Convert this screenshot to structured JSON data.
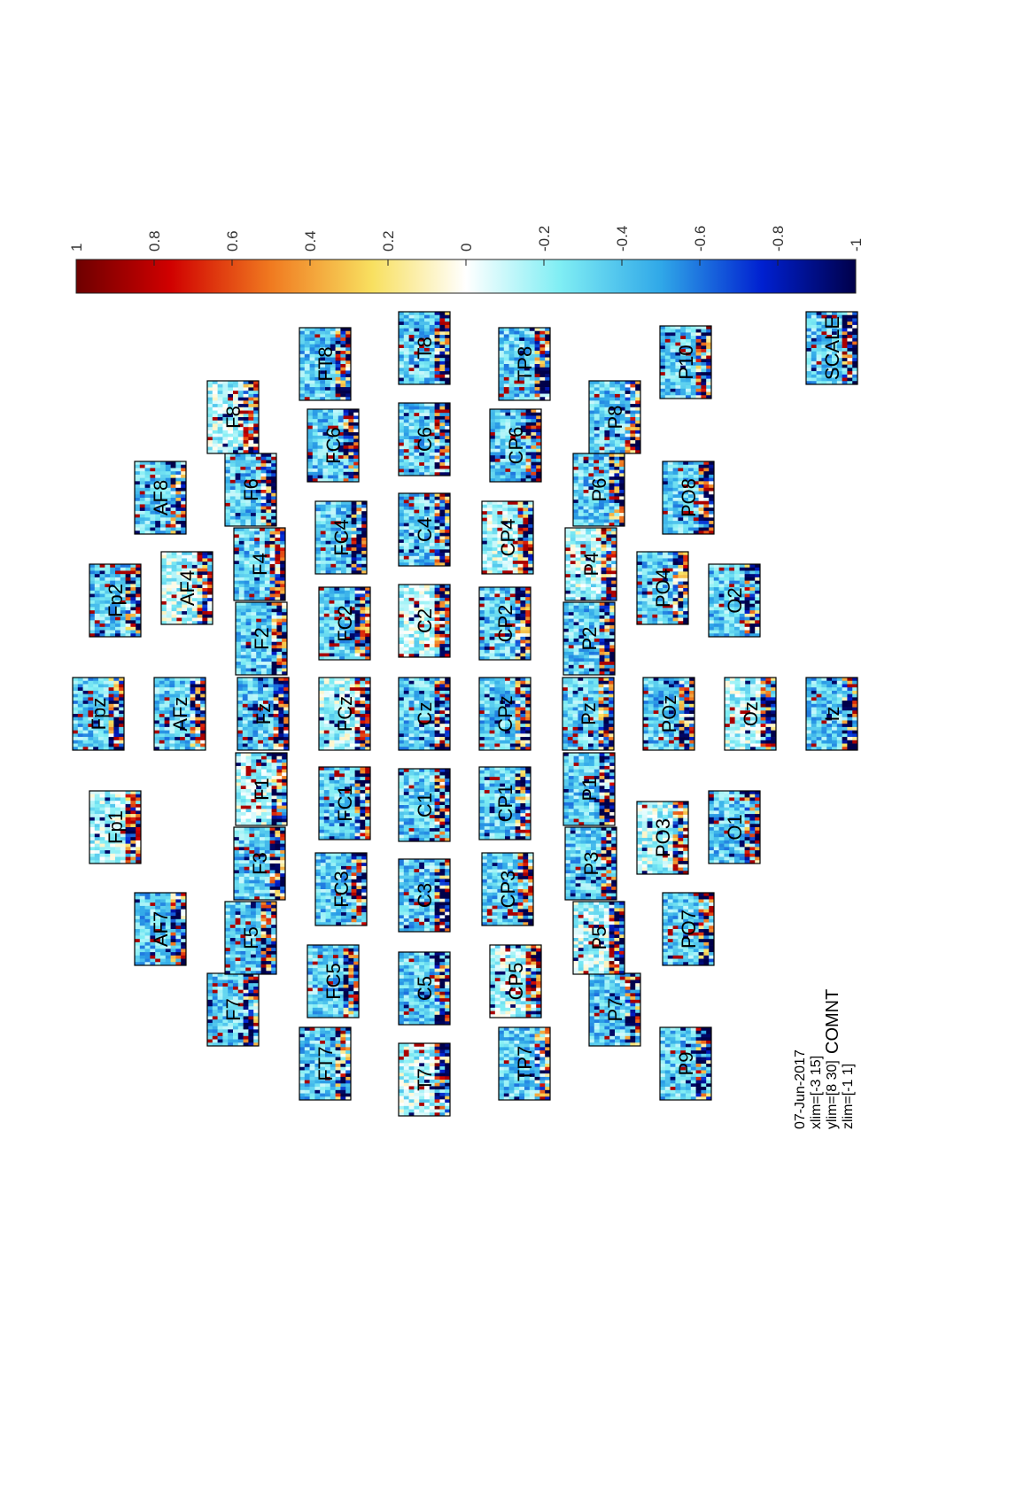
{
  "chart_data": {
    "type": "heatmap",
    "description_of_values": "time-frequency topoplot per channel",
    "channels": [
      "Fp1",
      "Fpz",
      "Fp2",
      "AF7",
      "AFz",
      "AF4",
      "AF8",
      "F7",
      "F5",
      "F3",
      "F1",
      "Fz",
      "F2",
      "F4",
      "F6",
      "F8",
      "FT7",
      "FC5",
      "FC3",
      "FC1",
      "FCz",
      "FC2",
      "FC4",
      "FC6",
      "FT8",
      "T7",
      "C5",
      "C3",
      "C1",
      "Cz",
      "C2",
      "C4",
      "C6",
      "T8",
      "TP7",
      "CP5",
      "CP3",
      "CP1",
      "CPz",
      "CP2",
      "CP4",
      "CP6",
      "TP8",
      "P9",
      "P7",
      "P5",
      "P3",
      "P1",
      "Pz",
      "P2",
      "P4",
      "P6",
      "P8",
      "P10",
      "PO7",
      "PO3",
      "POz",
      "PO4",
      "PO8",
      "O1",
      "Oz",
      "O2",
      "Iz",
      "SCALE"
    ],
    "xlim": [
      -3,
      15
    ],
    "ylim": [
      8,
      30
    ],
    "zlim": [
      -1,
      1
    ],
    "colorbar": {
      "ticks": [
        "1",
        "0.8",
        "0.6",
        "0.4",
        "0.2",
        "0",
        "-0.2",
        "-0.4",
        "-0.6",
        "-0.8",
        "-1"
      ],
      "colormap": [
        "#7f0000",
        "#ff0000",
        "#ff7f00",
        "#ffff40",
        "#ffffff",
        "#40ffff",
        "#007fff",
        "#0000ff",
        "#00007f"
      ]
    },
    "info": {
      "date": "07-Jun-2017",
      "xlim": "xlim=[-3 15]",
      "ylim": "ylim=[8 30]",
      "zlim": "zlim=[-1 1]",
      "comment": "COMNT"
    }
  }
}
